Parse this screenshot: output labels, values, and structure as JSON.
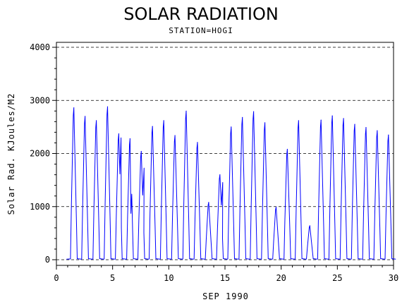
{
  "colors": {
    "series": "#0000ff",
    "axes": "#000000",
    "background": "#ffffff"
  },
  "chart_data": {
    "type": "line",
    "title": "SOLAR RADIATION",
    "subtitle": "STATION=HOGI",
    "xlabel": "SEP 1990",
    "ylabel": "Solar Rad. KJoules/M2",
    "xlim": [
      0,
      30
    ],
    "ylim": [
      0,
      4000
    ],
    "x_ticks": [
      0,
      5,
      10,
      15,
      20,
      25,
      30
    ],
    "y_ticks": [
      0,
      1000,
      2000,
      3000,
      4000
    ],
    "grid": "dashed horizontal lines at y ticks",
    "legend": "none",
    "series": [
      {
        "name": "",
        "description_by_day": "Hourly values; one daily peak near midday",
        "daily_peak_values": [
          {
            "day": 1,
            "peak": 2860
          },
          {
            "day": 2,
            "peak": 2700
          },
          {
            "day": 3,
            "peak": 2620
          },
          {
            "day": 4,
            "peak": 2880
          },
          {
            "day": 5,
            "peak": 2370
          },
          {
            "day": 6,
            "peak": 2280
          },
          {
            "day": 7,
            "peak": 2040
          },
          {
            "day": 8,
            "peak": 2510
          },
          {
            "day": 9,
            "peak": 2620
          },
          {
            "day": 10,
            "peak": 2340
          },
          {
            "day": 11,
            "peak": 2800
          },
          {
            "day": 12,
            "peak": 2210
          },
          {
            "day": 13,
            "peak": 1080
          },
          {
            "day": 14,
            "peak": 1600
          },
          {
            "day": 15,
            "peak": 2500
          },
          {
            "day": 16,
            "peak": 2680
          },
          {
            "day": 17,
            "peak": 2790
          },
          {
            "day": 18,
            "peak": 2580
          },
          {
            "day": 19,
            "peak": 990
          },
          {
            "day": 20,
            "peak": 2080
          },
          {
            "day": 21,
            "peak": 2620
          },
          {
            "day": 22,
            "peak": 640
          },
          {
            "day": 23,
            "peak": 2630
          },
          {
            "day": 24,
            "peak": 2710
          },
          {
            "day": 25,
            "peak": 2660
          },
          {
            "day": 26,
            "peak": 2550
          },
          {
            "day": 27,
            "peak": 2490
          },
          {
            "day": 28,
            "peak": 2430
          },
          {
            "day": 29,
            "peak": 2350
          }
        ],
        "secondary_bumps": [
          {
            "day": 5,
            "x": 5.75,
            "value": 2300
          },
          {
            "day": 6,
            "x": 6.7,
            "value": 1240
          },
          {
            "day": 7,
            "x": 7.35,
            "value": 1790
          },
          {
            "day": 7,
            "x": 7.8,
            "value": 1730
          },
          {
            "day": 14,
            "x": 14.8,
            "value": 1460
          }
        ]
      }
    ]
  }
}
